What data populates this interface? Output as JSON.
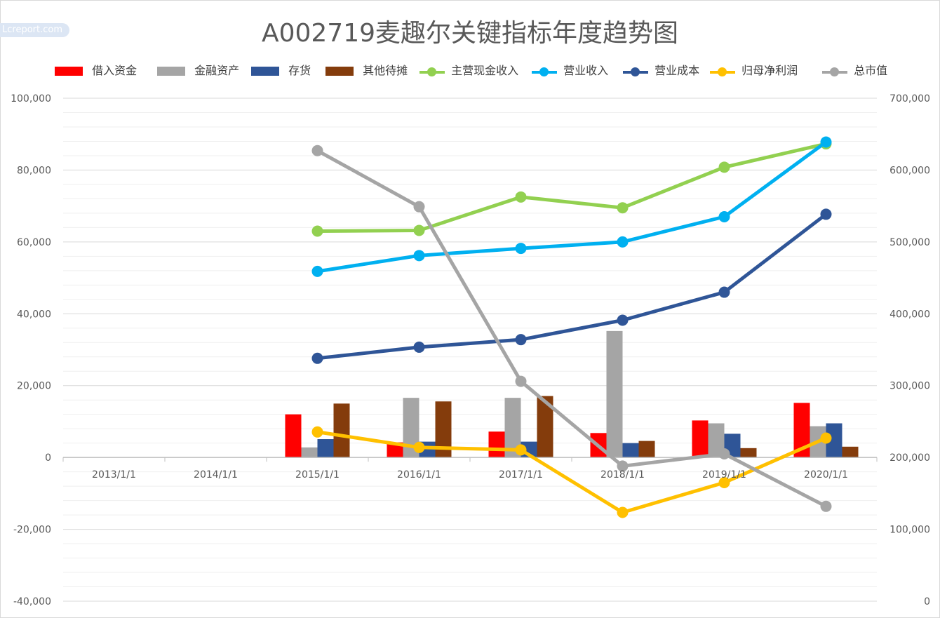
{
  "watermark": "Lcreport.com",
  "chart_data": {
    "type": "bar",
    "title": "A002719麦趣尔关键指标年度趋势图",
    "categories": [
      "2013/1/1",
      "2014/1/1",
      "2015/1/1",
      "2016/1/1",
      "2017/1/1",
      "2018/1/1",
      "2019/1/1",
      "2020/1/1"
    ],
    "y_left": {
      "ylim": [
        -40000,
        100000
      ],
      "ticks": [
        "100,000",
        "80,000",
        "60,000",
        "40,000",
        "20,000",
        "0",
        "-20,000",
        "-40,000"
      ]
    },
    "y_right": {
      "ylim": [
        0,
        700000
      ],
      "ticks": [
        "700,000",
        "600,000",
        "500,000",
        "400,000",
        "300,000",
        "200,000",
        "100,000",
        "0"
      ]
    },
    "grid": true,
    "legend_position": "top",
    "series": [
      {
        "name": "借入资金",
        "type": "bar",
        "color": "#ff0000",
        "axis": "left",
        "values": [
          null,
          null,
          12000,
          4200,
          7200,
          6800,
          10300,
          15200
        ]
      },
      {
        "name": "金融资产",
        "type": "bar",
        "color": "#a5a5a5",
        "axis": "left",
        "values": [
          null,
          null,
          2800,
          16600,
          16600,
          35200,
          9500,
          8700
        ]
      },
      {
        "name": "存货",
        "type": "bar",
        "color": "#2f5597",
        "axis": "left",
        "values": [
          null,
          null,
          5100,
          4400,
          4400,
          4000,
          6600,
          9500
        ]
      },
      {
        "name": "其他待摊",
        "type": "bar",
        "color": "#843c0c",
        "axis": "left",
        "values": [
          null,
          null,
          15000,
          15600,
          17100,
          4600,
          2600,
          3000
        ]
      },
      {
        "name": "主营现金收入",
        "type": "line",
        "color": "#92d050",
        "axis": "left",
        "values": [
          null,
          null,
          63000,
          63200,
          72500,
          69500,
          80800,
          87300
        ]
      },
      {
        "name": "营业收入",
        "type": "line",
        "color": "#00b0f0",
        "axis": "left",
        "values": [
          null,
          null,
          51800,
          56200,
          58200,
          60000,
          67000,
          87800
        ]
      },
      {
        "name": "营业成本",
        "type": "line",
        "color": "#2f5597",
        "axis": "left",
        "values": [
          null,
          null,
          27600,
          30700,
          32800,
          38200,
          46000,
          67700
        ]
      },
      {
        "name": "归母净利润",
        "type": "line",
        "color": "#ffc000",
        "axis": "left",
        "values": [
          null,
          null,
          7100,
          2800,
          2100,
          -15300,
          -7000,
          5400
        ]
      },
      {
        "name": "总市值",
        "type": "line",
        "color": "#a5a5a5",
        "axis": "right",
        "values": [
          null,
          null,
          627000,
          549000,
          306000,
          188000,
          205000,
          132000
        ]
      }
    ]
  }
}
